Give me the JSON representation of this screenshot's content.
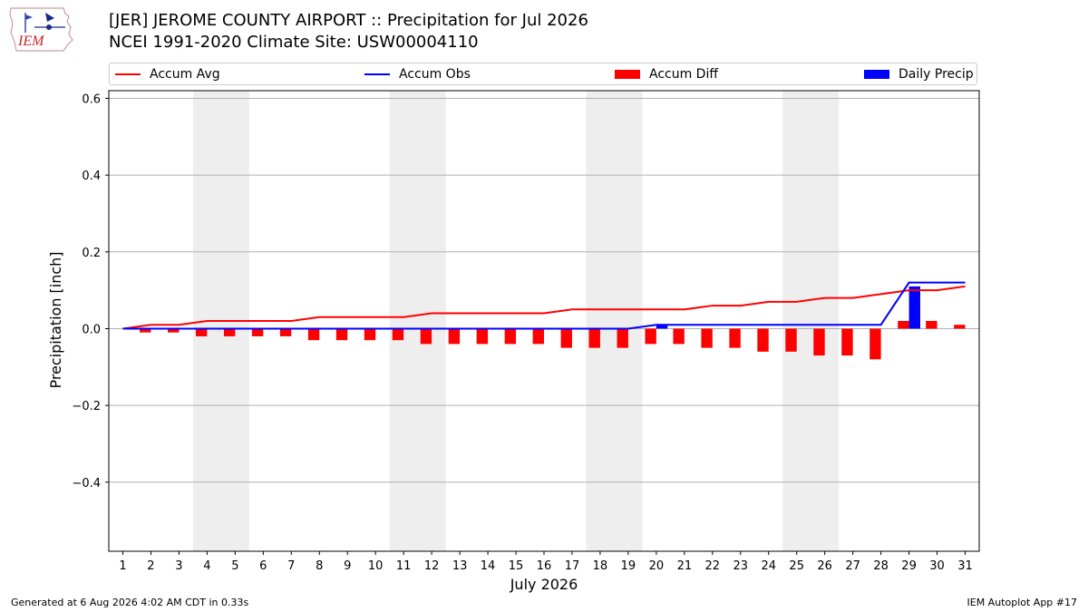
{
  "header": {
    "logo_text": "IEM",
    "title": "[JER] JEROME COUNTY AIRPORT :: Precipitation for Jul 2026",
    "subtitle": "NCEI 1991-2020 Climate Site: USW00004110"
  },
  "legend": {
    "placement": "top",
    "items": [
      {
        "label": "Accum Avg",
        "kind": "line",
        "color": "#ff0000"
      },
      {
        "label": "Accum Obs",
        "kind": "line",
        "color": "#0000ff"
      },
      {
        "label": "Accum Diff",
        "kind": "bar",
        "color": "#ff0000"
      },
      {
        "label": "Daily Precip",
        "kind": "bar",
        "color": "#0000ff"
      }
    ]
  },
  "footer": {
    "generated": "Generated at 6 Aug 2026 4:02 AM CDT in 0.33s",
    "app": "IEM Autoplot App #17"
  },
  "chart_data": {
    "type": "bar",
    "xlabel": "July 2026",
    "ylabel": "Precipitation [inch]",
    "x": [
      1,
      2,
      3,
      4,
      5,
      6,
      7,
      8,
      9,
      10,
      11,
      12,
      13,
      14,
      15,
      16,
      17,
      18,
      19,
      20,
      21,
      22,
      23,
      24,
      25,
      26,
      27,
      28,
      29,
      30,
      31
    ],
    "xlim": [
      0.5,
      31.5
    ],
    "ylim": [
      -0.58,
      0.62
    ],
    "yticks": [
      -0.4,
      -0.2,
      0.0,
      0.2,
      0.4,
      0.6
    ],
    "ytick_labels": [
      "−0.4",
      "−0.2",
      "0.0",
      "0.2",
      "0.4",
      "0.6"
    ],
    "grid": "horizontal",
    "weekend_shading": [
      [
        3.5,
        5.5
      ],
      [
        10.5,
        12.5
      ],
      [
        17.5,
        19.5
      ],
      [
        24.5,
        26.5
      ]
    ],
    "series": [
      {
        "name": "Accum Avg",
        "kind": "line",
        "color": "#ff0000",
        "values": [
          0.0,
          0.01,
          0.01,
          0.02,
          0.02,
          0.02,
          0.02,
          0.03,
          0.03,
          0.03,
          0.03,
          0.04,
          0.04,
          0.04,
          0.04,
          0.04,
          0.05,
          0.05,
          0.05,
          0.05,
          0.05,
          0.06,
          0.06,
          0.07,
          0.07,
          0.08,
          0.08,
          0.09,
          0.1,
          0.1,
          0.11
        ]
      },
      {
        "name": "Accum Obs",
        "kind": "line",
        "color": "#0000ff",
        "values": [
          0.0,
          0.0,
          0.0,
          0.0,
          0.0,
          0.0,
          0.0,
          0.0,
          0.0,
          0.0,
          0.0,
          0.0,
          0.0,
          0.0,
          0.0,
          0.0,
          0.0,
          0.0,
          0.0,
          0.01,
          0.01,
          0.01,
          0.01,
          0.01,
          0.01,
          0.01,
          0.01,
          0.01,
          0.12,
          0.12,
          0.12
        ]
      },
      {
        "name": "Accum Diff",
        "kind": "bar",
        "color": "#ff0000",
        "values": [
          0.0,
          -0.01,
          -0.01,
          -0.02,
          -0.02,
          -0.02,
          -0.02,
          -0.03,
          -0.03,
          -0.03,
          -0.03,
          -0.04,
          -0.04,
          -0.04,
          -0.04,
          -0.04,
          -0.05,
          -0.05,
          -0.05,
          -0.04,
          -0.04,
          -0.05,
          -0.05,
          -0.06,
          -0.06,
          -0.07,
          -0.07,
          -0.08,
          0.02,
          0.02,
          0.01
        ]
      },
      {
        "name": "Daily Precip",
        "kind": "bar",
        "color": "#0000ff",
        "values": [
          0,
          0,
          0,
          0,
          0,
          0,
          0,
          0,
          0,
          0,
          0,
          0,
          0,
          0,
          0,
          0,
          0,
          0,
          0,
          0.01,
          0,
          0,
          0,
          0,
          0,
          0,
          0,
          0,
          0.11,
          0,
          0
        ]
      }
    ]
  }
}
